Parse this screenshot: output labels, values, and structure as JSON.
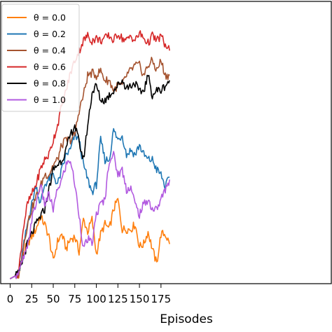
{
  "chart_data": {
    "type": "line",
    "title": "",
    "xlabel": "Episodes",
    "ylabel": "",
    "xlim": [
      -2,
      185
    ],
    "ylim": [
      0,
      1
    ],
    "xticks": [
      "0",
      "25",
      "50",
      "75",
      "100",
      "125",
      "150",
      "175"
    ],
    "xtick_values": [
      0,
      25,
      50,
      75,
      100,
      125,
      150,
      175
    ],
    "grid": false,
    "legend_position": "top-left",
    "series": [
      {
        "name": "θ = 0.0",
        "color": "#ff7f0e",
        "x": [
          0,
          5,
          10,
          15,
          20,
          25,
          30,
          35,
          40,
          45,
          50,
          55,
          60,
          65,
          70,
          75,
          80,
          85,
          90,
          95,
          100,
          105,
          110,
          115,
          120,
          125,
          130,
          135,
          140,
          145,
          150,
          155,
          160,
          165,
          170,
          175,
          180,
          185
        ],
        "values": [
          0.0,
          0.01,
          0.02,
          0.1,
          0.14,
          0.17,
          0.2,
          0.25,
          0.22,
          0.17,
          0.07,
          0.15,
          0.18,
          0.12,
          0.16,
          0.17,
          0.11,
          0.24,
          0.19,
          0.24,
          0.1,
          0.18,
          0.22,
          0.2,
          0.28,
          0.32,
          0.2,
          0.2,
          0.2,
          0.22,
          0.13,
          0.14,
          0.19,
          0.12,
          0.06,
          0.18,
          0.18,
          0.14
        ]
      },
      {
        "name": "θ = 0.2",
        "color": "#1f77b4",
        "x": [
          0,
          5,
          10,
          15,
          20,
          25,
          30,
          35,
          40,
          45,
          50,
          55,
          60,
          65,
          70,
          75,
          80,
          85,
          90,
          95,
          100,
          105,
          110,
          115,
          120,
          125,
          130,
          135,
          140,
          145,
          150,
          155,
          160,
          165,
          170,
          175,
          180,
          185
        ],
        "values": [
          0.0,
          0.01,
          0.02,
          0.12,
          0.22,
          0.3,
          0.38,
          0.3,
          0.38,
          0.4,
          0.42,
          0.38,
          0.44,
          0.5,
          0.52,
          0.58,
          0.56,
          0.46,
          0.4,
          0.35,
          0.38,
          0.56,
          0.48,
          0.48,
          0.6,
          0.56,
          0.58,
          0.5,
          0.52,
          0.5,
          0.54,
          0.5,
          0.48,
          0.48,
          0.44,
          0.42,
          0.37,
          0.41
        ]
      },
      {
        "name": "θ = 0.4",
        "color": "#a5532f",
        "x": [
          0,
          5,
          10,
          15,
          20,
          25,
          30,
          35,
          40,
          45,
          50,
          55,
          60,
          65,
          70,
          75,
          80,
          85,
          90,
          95,
          100,
          105,
          110,
          115,
          120,
          125,
          130,
          135,
          140,
          145,
          150,
          155,
          160,
          165,
          170,
          175,
          180,
          185
        ],
        "values": [
          0.0,
          0.01,
          0.02,
          0.12,
          0.22,
          0.28,
          0.33,
          0.37,
          0.42,
          0.42,
          0.46,
          0.48,
          0.54,
          0.56,
          0.56,
          0.58,
          0.68,
          0.74,
          0.82,
          0.83,
          0.82,
          0.84,
          0.8,
          0.8,
          0.76,
          0.78,
          0.78,
          0.82,
          0.84,
          0.86,
          0.86,
          0.82,
          0.86,
          0.88,
          0.84,
          0.88,
          0.82,
          0.82
        ]
      },
      {
        "name": "θ = 0.6",
        "color": "#d62728",
        "x": [
          0,
          5,
          10,
          15,
          20,
          25,
          30,
          35,
          40,
          45,
          50,
          55,
          60,
          65,
          70,
          75,
          80,
          85,
          90,
          95,
          100,
          105,
          110,
          115,
          120,
          125,
          130,
          135,
          140,
          145,
          150,
          155,
          160,
          165,
          170,
          175,
          180,
          185
        ],
        "values": [
          0.0,
          0.01,
          0.03,
          0.2,
          0.3,
          0.34,
          0.38,
          0.44,
          0.48,
          0.5,
          0.56,
          0.62,
          0.7,
          0.76,
          0.83,
          0.88,
          0.92,
          0.96,
          0.98,
          0.96,
          0.97,
          0.96,
          0.97,
          0.98,
          0.96,
          0.99,
          0.97,
          0.96,
          0.98,
          0.96,
          0.99,
          0.97,
          0.95,
          0.98,
          0.96,
          0.98,
          0.94,
          0.92
        ]
      },
      {
        "name": "θ = 0.8",
        "color": "#000000",
        "x": [
          0,
          5,
          10,
          15,
          20,
          25,
          30,
          35,
          40,
          45,
          50,
          55,
          60,
          65,
          70,
          75,
          80,
          85,
          90,
          95,
          100,
          105,
          110,
          115,
          120,
          125,
          130,
          135,
          140,
          145,
          150,
          155,
          160,
          165,
          170,
          175,
          180,
          185
        ],
        "values": [
          0.0,
          0.01,
          0.02,
          0.08,
          0.14,
          0.18,
          0.22,
          0.25,
          0.28,
          0.36,
          0.44,
          0.46,
          0.48,
          0.52,
          0.58,
          0.62,
          0.55,
          0.48,
          0.62,
          0.75,
          0.78,
          0.72,
          0.72,
          0.74,
          0.76,
          0.78,
          0.8,
          0.77,
          0.78,
          0.79,
          0.75,
          0.76,
          0.82,
          0.74,
          0.76,
          0.76,
          0.78,
          0.8
        ]
      },
      {
        "name": "θ = 1.0",
        "color": "#b25ae0",
        "x": [
          0,
          5,
          10,
          15,
          20,
          25,
          30,
          35,
          40,
          45,
          50,
          55,
          60,
          65,
          70,
          75,
          80,
          85,
          90,
          95,
          100,
          105,
          110,
          115,
          120,
          125,
          130,
          135,
          140,
          145,
          150,
          155,
          160,
          165,
          170,
          175,
          180,
          185
        ],
        "values": [
          0.0,
          0.01,
          0.02,
          0.08,
          0.12,
          0.24,
          0.3,
          0.38,
          0.3,
          0.34,
          0.28,
          0.36,
          0.4,
          0.46,
          0.48,
          0.38,
          0.26,
          0.12,
          0.16,
          0.14,
          0.26,
          0.3,
          0.32,
          0.48,
          0.5,
          0.42,
          0.44,
          0.36,
          0.37,
          0.3,
          0.26,
          0.3,
          0.32,
          0.28,
          0.28,
          0.32,
          0.36,
          0.4
        ]
      }
    ]
  }
}
